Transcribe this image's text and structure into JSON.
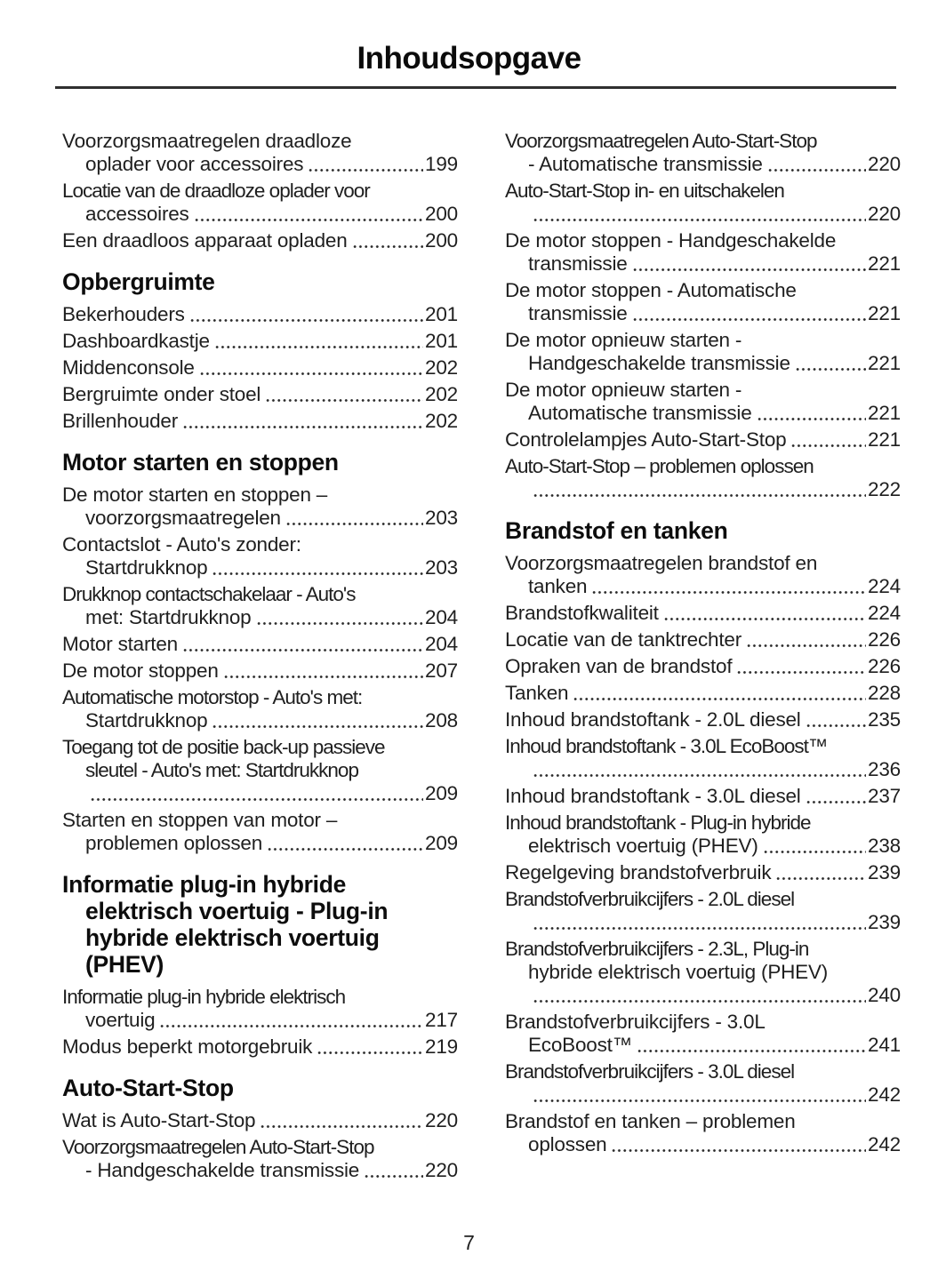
{
  "page": {
    "title": "Inhoudsopgave",
    "page_number": "7"
  },
  "columns": [
    {
      "blocks": [
        {
          "title_lines": [],
          "entries": [
            {
              "lines": [
                "Voorzorgsmaatregelen draadloze",
                "oplader voor accessoires"
              ],
              "page": "199"
            },
            {
              "lines": [
                "Locatie van de draadloze oplader voor",
                "accessoires"
              ],
              "page": "200"
            },
            {
              "lines": [
                "Een draadloos apparaat opladen"
              ],
              "page": "200"
            }
          ]
        },
        {
          "title_lines": [
            "Opbergruimte"
          ],
          "entries": [
            {
              "lines": [
                "Bekerhouders"
              ],
              "page": "201"
            },
            {
              "lines": [
                "Dashboardkastje"
              ],
              "page": "201"
            },
            {
              "lines": [
                "Middenconsole"
              ],
              "page": "202"
            },
            {
              "lines": [
                "Bergruimte onder stoel"
              ],
              "page": "202"
            },
            {
              "lines": [
                "Brillenhouder"
              ],
              "page": "202"
            }
          ]
        },
        {
          "title_lines": [
            "Motor starten en stoppen"
          ],
          "entries": [
            {
              "lines": [
                "De motor starten en stoppen –",
                "voorzorgsmaatregelen"
              ],
              "page": "203"
            },
            {
              "lines": [
                "Contactslot - Auto's zonder:",
                "Startdrukknop"
              ],
              "page": "203"
            },
            {
              "lines": [
                "Drukknop contactschakelaar - Auto's",
                "met: Startdrukknop"
              ],
              "page": "204"
            },
            {
              "lines": [
                "Motor starten"
              ],
              "page": "204"
            },
            {
              "lines": [
                "De motor stoppen"
              ],
              "page": "207"
            },
            {
              "lines": [
                "Automatische motorstop - Auto's met:",
                "Startdrukknop"
              ],
              "page": "208"
            },
            {
              "lines": [
                "Toegang tot de positie back-up passieve",
                "sleutel - Auto's met: Startdrukknop",
                ""
              ],
              "page": "209"
            },
            {
              "lines": [
                "Starten en stoppen van motor –",
                "problemen oplossen"
              ],
              "page": "209"
            }
          ]
        },
        {
          "title_lines": [
            "Informatie plug-in hybride",
            "elektrisch voertuig - Plug-in",
            "hybride elektrisch voertuig",
            "(PHEV)"
          ],
          "entries": [
            {
              "lines": [
                "Informatie plug-in hybride elektrisch",
                "voertuig"
              ],
              "page": "217"
            },
            {
              "lines": [
                "Modus beperkt motorgebruik"
              ],
              "page": "219"
            }
          ]
        },
        {
          "title_lines": [
            "Auto-Start-Stop"
          ],
          "entries": [
            {
              "lines": [
                "Wat is Auto-Start-Stop"
              ],
              "page": "220"
            },
            {
              "lines": [
                "Voorzorgsmaatregelen Auto-Start-Stop",
                "- Handgeschakelde transmissie"
              ],
              "page": "220"
            }
          ]
        }
      ]
    },
    {
      "blocks": [
        {
          "title_lines": [],
          "entries": [
            {
              "lines": [
                "Voorzorgsmaatregelen Auto-Start-Stop",
                "- Automatische transmissie"
              ],
              "page": "220"
            },
            {
              "lines": [
                "Auto-Start-Stop in- en uitschakelen",
                ""
              ],
              "page": "220"
            },
            {
              "lines": [
                "De motor stoppen - Handgeschakelde",
                "transmissie"
              ],
              "page": "221"
            },
            {
              "lines": [
                "De motor stoppen - Automatische",
                "transmissie"
              ],
              "page": "221"
            },
            {
              "lines": [
                "De motor opnieuw starten -",
                "Handgeschakelde transmissie"
              ],
              "page": "221"
            },
            {
              "lines": [
                "De motor opnieuw starten -",
                "Automatische transmissie"
              ],
              "page": "221"
            },
            {
              "lines": [
                "Controlelampjes Auto-Start-Stop"
              ],
              "page": "221"
            },
            {
              "lines": [
                "Auto-Start-Stop – problemen oplossen",
                ""
              ],
              "page": "222"
            }
          ]
        },
        {
          "title_lines": [
            "Brandstof en tanken"
          ],
          "entries": [
            {
              "lines": [
                "Voorzorgsmaatregelen brandstof en",
                "tanken"
              ],
              "page": "224"
            },
            {
              "lines": [
                "Brandstofkwaliteit"
              ],
              "page": "224"
            },
            {
              "lines": [
                "Locatie van de tanktrechter"
              ],
              "page": "226"
            },
            {
              "lines": [
                "Opraken van de brandstof"
              ],
              "page": "226"
            },
            {
              "lines": [
                "Tanken"
              ],
              "page": "228"
            },
            {
              "lines": [
                "Inhoud brandstoftank - 2.0L diesel"
              ],
              "page": "235"
            },
            {
              "lines": [
                "Inhoud brandstoftank - 3.0L EcoBoost™",
                ""
              ],
              "page": "236"
            },
            {
              "lines": [
                "Inhoud brandstoftank - 3.0L diesel"
              ],
              "page": "237"
            },
            {
              "lines": [
                "Inhoud brandstoftank - Plug-in hybride",
                "elektrisch voertuig (PHEV)"
              ],
              "page": "238"
            },
            {
              "lines": [
                "Regelgeving brandstofverbruik"
              ],
              "page": "239"
            },
            {
              "lines": [
                "Brandstofverbruikcijfers - 2.0L diesel",
                ""
              ],
              "page": "239"
            },
            {
              "lines": [
                "Brandstofverbruikcijfers - 2.3L, Plug-in",
                "hybride elektrisch voertuig (PHEV)",
                ""
              ],
              "page": "240"
            },
            {
              "lines": [
                "Brandstofverbruikcijfers - 3.0L",
                "EcoBoost™"
              ],
              "page": "241"
            },
            {
              "lines": [
                "Brandstofverbruikcijfers - 3.0L diesel",
                ""
              ],
              "page": "242"
            },
            {
              "lines": [
                "Brandstof en tanken – problemen",
                "oplossen"
              ],
              "page": "242"
            }
          ]
        }
      ]
    }
  ]
}
